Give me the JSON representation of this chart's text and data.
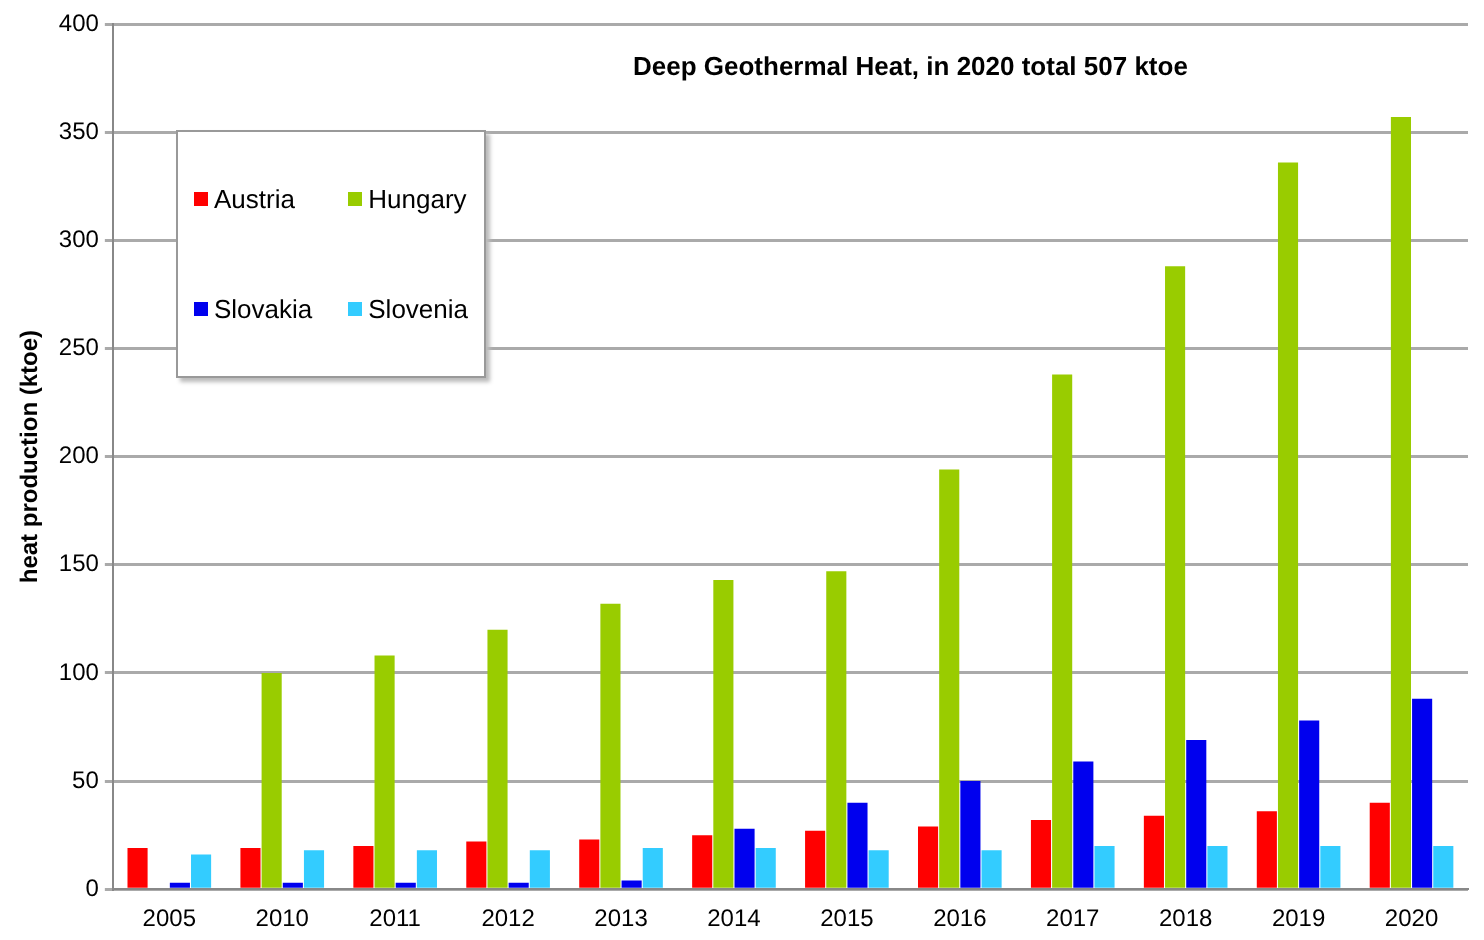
{
  "chart_data": {
    "type": "bar",
    "title": "Deep Geothermal Heat, in 2020 total 507 ktoe",
    "ylabel": "heat production (ktoe)",
    "categories": [
      "2005",
      "2010",
      "2011",
      "2012",
      "2013",
      "2014",
      "2015",
      "2016",
      "2017",
      "2018",
      "2019",
      "2020"
    ],
    "series": [
      {
        "name": "Austria",
        "color": "#ff0000",
        "values": [
          19,
          19,
          20,
          22,
          23,
          25,
          27,
          29,
          32,
          34,
          36,
          40
        ]
      },
      {
        "name": "Hungary",
        "color": "#99cc00",
        "values": [
          null,
          100,
          108,
          120,
          132,
          143,
          147,
          194,
          238,
          288,
          336,
          357
        ]
      },
      {
        "name": "Slovakia",
        "color": "#0000ee",
        "values": [
          3,
          3,
          3,
          3,
          4,
          28,
          40,
          50,
          59,
          69,
          78,
          88
        ]
      },
      {
        "name": "Slovenia",
        "color": "#33ccff",
        "values": [
          16,
          18,
          18,
          18,
          19,
          19,
          18,
          18,
          20,
          20,
          20,
          20
        ]
      }
    ],
    "ylim": [
      0,
      400
    ],
    "yticks": [
      0,
      50,
      100,
      150,
      200,
      250,
      300,
      350,
      400
    ],
    "grid": "y",
    "legend": "top left"
  }
}
